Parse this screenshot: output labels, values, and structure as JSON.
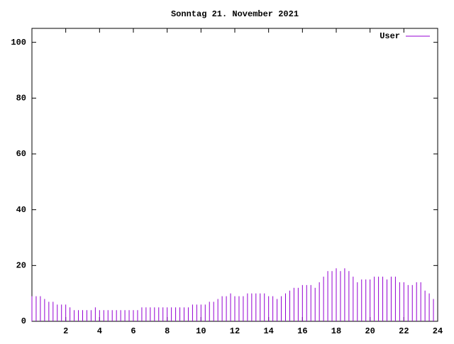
{
  "chart_data": {
    "type": "impulse",
    "title": "Sonntag 21. November 2021",
    "x": [
      0,
      0.25,
      0.5,
      0.75,
      1,
      1.25,
      1.5,
      1.75,
      2,
      2.25,
      2.5,
      2.75,
      3,
      3.25,
      3.5,
      3.75,
      4,
      4.25,
      4.5,
      4.75,
      5,
      5.25,
      5.5,
      5.75,
      6,
      6.25,
      6.5,
      6.75,
      7,
      7.25,
      7.5,
      7.75,
      8,
      8.25,
      8.5,
      8.75,
      9,
      9.25,
      9.5,
      9.75,
      10,
      10.25,
      10.5,
      10.75,
      11,
      11.25,
      11.5,
      11.75,
      12,
      12.25,
      12.5,
      12.75,
      13,
      13.25,
      13.5,
      13.75,
      14,
      14.25,
      14.5,
      14.75,
      15,
      15.25,
      15.5,
      15.75,
      16,
      16.25,
      16.5,
      16.75,
      17,
      17.25,
      17.5,
      17.75,
      18,
      18.25,
      18.5,
      18.75,
      19,
      19.25,
      19.5,
      19.75,
      20,
      20.25,
      20.5,
      20.75,
      21,
      21.25,
      21.5,
      21.75,
      22,
      22.25,
      22.5,
      22.75,
      23,
      23.25,
      23.5,
      23.75
    ],
    "series": [
      {
        "name": "User",
        "color": "#9400d3",
        "values": [
          9,
          9,
          9,
          8,
          7,
          7,
          6,
          6,
          6,
          5,
          4,
          4,
          4,
          4,
          4,
          5,
          4,
          4,
          4,
          4,
          4,
          4,
          4,
          4,
          4,
          4,
          5,
          5,
          5,
          5,
          5,
          5,
          5,
          5,
          5,
          5,
          5,
          5,
          6,
          6,
          6,
          6,
          7,
          7,
          8,
          9,
          9,
          10,
          9,
          9,
          9,
          10,
          10,
          10,
          10,
          10,
          9,
          9,
          8,
          9,
          10,
          11,
          12,
          12,
          13,
          13,
          13,
          12,
          14,
          16,
          18,
          18,
          19,
          18,
          19,
          18,
          16,
          14,
          15,
          15,
          15,
          16,
          16,
          16,
          15,
          16,
          16,
          14,
          14,
          13,
          13,
          14,
          14,
          11,
          10,
          8
        ]
      }
    ],
    "xlim": [
      0,
      24
    ],
    "ylim": [
      0,
      105
    ],
    "xticks": [
      2,
      4,
      6,
      8,
      10,
      12,
      14,
      16,
      18,
      20,
      22,
      24
    ],
    "yticks": [
      0,
      20,
      40,
      60,
      80,
      100
    ]
  }
}
